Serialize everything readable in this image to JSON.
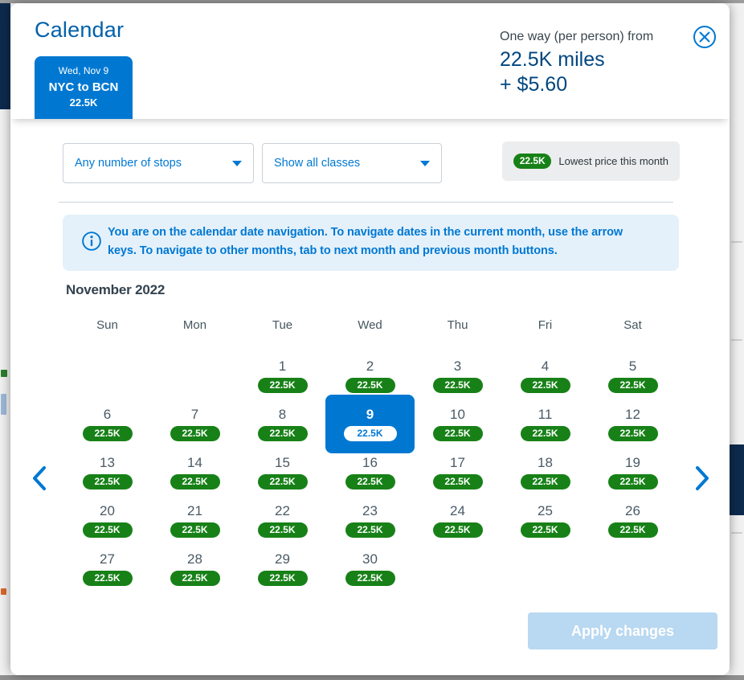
{
  "modal": {
    "title": "Calendar"
  },
  "trip_tab": {
    "date": "Wed, Nov 9",
    "route": "NYC to BCN",
    "price": "22.5K"
  },
  "price_summary": {
    "label": "One way (per person) from",
    "miles": "22.5K miles",
    "fees": "+ $5.60"
  },
  "filters": {
    "stops_dropdown": {
      "value": "Any number of stops"
    },
    "class_dropdown": {
      "value": "Show all classes"
    }
  },
  "legend": {
    "badge": "22.5K",
    "label": "Lowest price this month"
  },
  "info_banner": {
    "text": "You are on the calendar date navigation. To navigate dates in the current month, use the arrow keys. To navigate to other months, tab to next month and previous month buttons."
  },
  "calendar": {
    "month_title": "November 2022",
    "weekdays": [
      "Sun",
      "Mon",
      "Tue",
      "Wed",
      "Thu",
      "Fri",
      "Sat"
    ],
    "first_day_column": 3,
    "selected_day": 9,
    "days": [
      {
        "day": "1",
        "price": "22.5K"
      },
      {
        "day": "2",
        "price": "22.5K"
      },
      {
        "day": "3",
        "price": "22.5K"
      },
      {
        "day": "4",
        "price": "22.5K"
      },
      {
        "day": "5",
        "price": "22.5K"
      },
      {
        "day": "6",
        "price": "22.5K"
      },
      {
        "day": "7",
        "price": "22.5K"
      },
      {
        "day": "8",
        "price": "22.5K"
      },
      {
        "day": "9",
        "price": "22.5K"
      },
      {
        "day": "10",
        "price": "22.5K"
      },
      {
        "day": "11",
        "price": "22.5K"
      },
      {
        "day": "12",
        "price": "22.5K"
      },
      {
        "day": "13",
        "price": "22.5K"
      },
      {
        "day": "14",
        "price": "22.5K"
      },
      {
        "day": "15",
        "price": "22.5K"
      },
      {
        "day": "16",
        "price": "22.5K"
      },
      {
        "day": "17",
        "price": "22.5K"
      },
      {
        "day": "18",
        "price": "22.5K"
      },
      {
        "day": "19",
        "price": "22.5K"
      },
      {
        "day": "20",
        "price": "22.5K"
      },
      {
        "day": "21",
        "price": "22.5K"
      },
      {
        "day": "22",
        "price": "22.5K"
      },
      {
        "day": "23",
        "price": "22.5K"
      },
      {
        "day": "24",
        "price": "22.5K"
      },
      {
        "day": "25",
        "price": "22.5K"
      },
      {
        "day": "26",
        "price": "22.5K"
      },
      {
        "day": "27",
        "price": "22.5K"
      },
      {
        "day": "28",
        "price": "22.5K"
      },
      {
        "day": "29",
        "price": "22.5K"
      },
      {
        "day": "30",
        "price": "22.5K"
      }
    ]
  },
  "apply_button": {
    "label": "Apply changes"
  },
  "colors": {
    "brand_blue": "#0078d2",
    "title_blue": "#0061ab",
    "dark_blue": "#00467f",
    "badge_green": "#178117",
    "banner_bg": "#e4f1fb",
    "legend_bg": "#ecedee",
    "disabled_button_bg": "#b9d8f1"
  }
}
